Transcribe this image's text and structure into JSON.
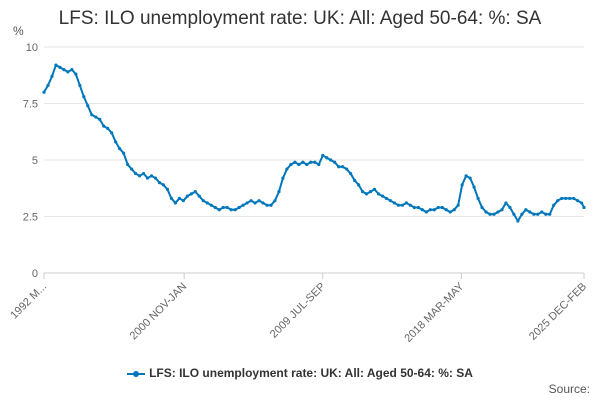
{
  "chart_data": {
    "type": "line",
    "title": "LFS: ILO unemployment rate: UK: All: Aged 50-64: %: SA",
    "unit_label": "%",
    "ylabel": "",
    "xlabel": "",
    "ylim": [
      0,
      10
    ],
    "yticks": [
      "0",
      "2.5",
      "5",
      "7.5",
      "10"
    ],
    "ytick_values": [
      0,
      2.5,
      5,
      7.5,
      10
    ],
    "xticks": [
      "1992 M...",
      "2000 NOV-JAN",
      "2009 JUL-SEP",
      "2018 MAR-MAY",
      "2025 DEC-FEB"
    ],
    "xtick_years": [
      1992.0,
      2000.8,
      2009.5,
      2018.2,
      2025.9
    ],
    "xlim": [
      1992.0,
      2025.9
    ],
    "grid": true,
    "legend_position": "bottom",
    "color": "#0077bb",
    "series": [
      {
        "name": "LFS: ILO unemployment rate: UK: All: Aged 50-64: %: SA",
        "x": [
          1992.0,
          1992.25,
          1992.5,
          1992.75,
          1993.0,
          1993.25,
          1993.5,
          1993.75,
          1994.0,
          1994.25,
          1994.5,
          1994.75,
          1995.0,
          1995.25,
          1995.5,
          1995.75,
          1996.0,
          1996.25,
          1996.5,
          1996.75,
          1997.0,
          1997.25,
          1997.5,
          1997.75,
          1998.0,
          1998.25,
          1998.5,
          1998.75,
          1999.0,
          1999.25,
          1999.5,
          1999.75,
          2000.0,
          2000.25,
          2000.5,
          2000.75,
          2001.0,
          2001.25,
          2001.5,
          2001.75,
          2002.0,
          2002.25,
          2002.5,
          2002.75,
          2003.0,
          2003.25,
          2003.5,
          2003.75,
          2004.0,
          2004.25,
          2004.5,
          2004.75,
          2005.0,
          2005.25,
          2005.5,
          2005.75,
          2006.0,
          2006.25,
          2006.5,
          2006.75,
          2007.0,
          2007.25,
          2007.5,
          2007.75,
          2008.0,
          2008.25,
          2008.5,
          2008.75,
          2009.0,
          2009.25,
          2009.5,
          2009.75,
          2010.0,
          2010.25,
          2010.5,
          2010.75,
          2011.0,
          2011.25,
          2011.5,
          2011.75,
          2012.0,
          2012.25,
          2012.5,
          2012.75,
          2013.0,
          2013.25,
          2013.5,
          2013.75,
          2014.0,
          2014.25,
          2014.5,
          2014.75,
          2015.0,
          2015.25,
          2015.5,
          2015.75,
          2016.0,
          2016.25,
          2016.5,
          2016.75,
          2017.0,
          2017.25,
          2017.5,
          2017.75,
          2018.0,
          2018.25,
          2018.5,
          2018.75,
          2019.0,
          2019.25,
          2019.5,
          2019.75,
          2020.0,
          2020.25,
          2020.5,
          2020.75,
          2021.0,
          2021.25,
          2021.5,
          2021.75,
          2022.0,
          2022.25,
          2022.5,
          2022.75,
          2023.0,
          2023.25,
          2023.5,
          2023.75,
          2024.0,
          2024.25,
          2024.5,
          2024.75,
          2025.0,
          2025.25,
          2025.5,
          2025.75,
          2025.9
        ],
        "values": [
          8.0,
          8.3,
          8.7,
          9.2,
          9.1,
          9.0,
          8.9,
          9.0,
          8.8,
          8.3,
          7.8,
          7.4,
          7.0,
          6.9,
          6.8,
          6.5,
          6.4,
          6.2,
          5.8,
          5.5,
          5.3,
          4.8,
          4.6,
          4.4,
          4.3,
          4.4,
          4.2,
          4.3,
          4.2,
          4.0,
          3.9,
          3.7,
          3.3,
          3.1,
          3.3,
          3.2,
          3.4,
          3.5,
          3.6,
          3.4,
          3.2,
          3.1,
          3.0,
          2.9,
          2.8,
          2.9,
          2.9,
          2.8,
          2.8,
          2.9,
          3.0,
          3.1,
          3.2,
          3.1,
          3.2,
          3.1,
          3.0,
          3.0,
          3.2,
          3.6,
          4.2,
          4.6,
          4.8,
          4.9,
          4.8,
          4.9,
          4.8,
          4.9,
          4.9,
          4.8,
          5.2,
          5.1,
          5.0,
          4.9,
          4.7,
          4.7,
          4.6,
          4.4,
          4.1,
          3.9,
          3.6,
          3.5,
          3.6,
          3.7,
          3.5,
          3.4,
          3.3,
          3.2,
          3.1,
          3.0,
          3.0,
          3.1,
          3.0,
          2.9,
          2.9,
          2.8,
          2.7,
          2.8,
          2.8,
          2.9,
          2.9,
          2.8,
          2.7,
          2.8,
          3.0,
          3.9,
          4.3,
          4.2,
          3.8,
          3.3,
          2.9,
          2.7,
          2.6,
          2.6,
          2.7,
          2.8,
          3.1,
          2.9,
          2.6,
          2.3,
          2.6,
          2.8,
          2.7,
          2.6,
          2.6,
          2.7,
          2.6,
          2.6,
          3.0,
          3.2,
          3.3,
          3.3,
          3.3,
          3.3,
          3.2,
          3.1,
          2.9
        ]
      }
    ]
  },
  "legend": {
    "label": "LFS: ILO unemployment rate: UK: All: Aged 50-64: %: SA"
  },
  "footer": {
    "source": "Source:"
  }
}
